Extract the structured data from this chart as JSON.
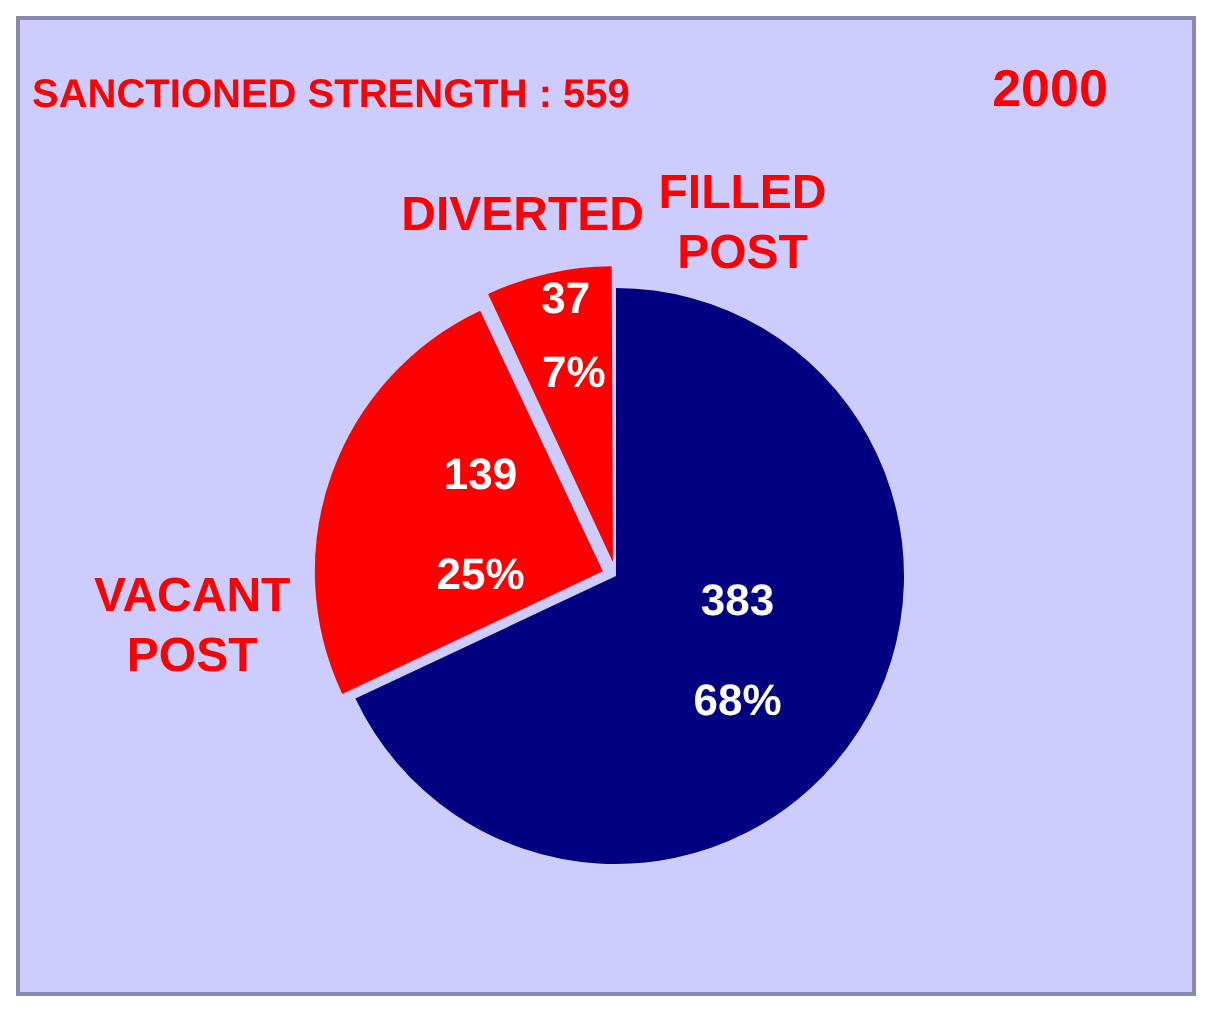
{
  "chart_data": {
    "type": "pie",
    "title": "SANCTIONED STRENGTH : 559",
    "subtitle": "2000",
    "categories": [
      "FILLED POST",
      "VACANT POST",
      "DIVERTED"
    ],
    "values": [
      68,
      25,
      7
    ],
    "annotations": [
      "383",
      "139",
      "37"
    ],
    "colors": [
      "#000080",
      "#ff0000",
      "#ff0000"
    ],
    "value_labels": [
      "68%",
      "25%",
      "7%"
    ],
    "legend": false
  }
}
